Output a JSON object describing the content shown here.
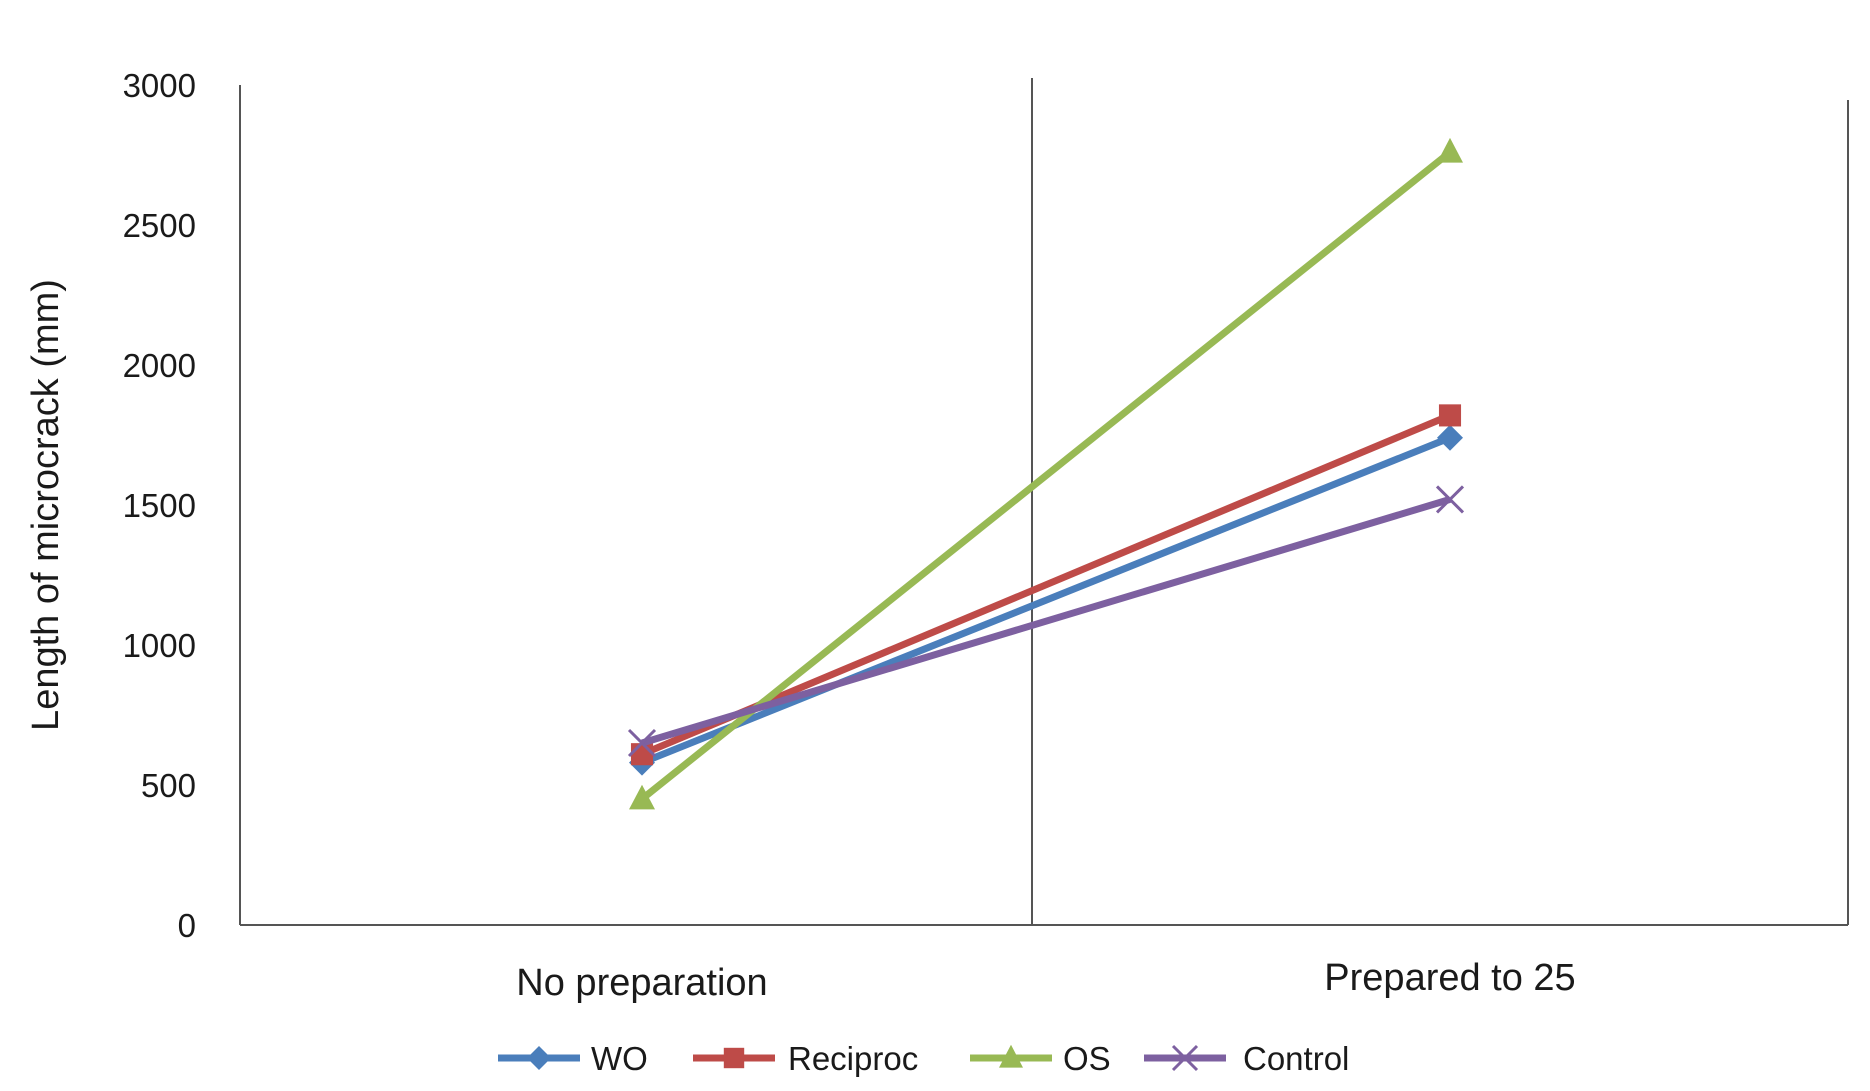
{
  "chart_data": {
    "type": "line",
    "ylabel": "Length of microcrack (mm)",
    "ylim": [
      0,
      3000
    ],
    "yticks": [
      "0",
      "500",
      "1000",
      "1500",
      "2000",
      "2500",
      "3000"
    ],
    "categories": [
      "No preparation",
      "Prepared to 25"
    ],
    "grid": false,
    "legend_position": "bottom",
    "series": [
      {
        "name": "WO",
        "values": [
          580,
          1740
        ],
        "color": "#4a7ebb",
        "marker": "diamond"
      },
      {
        "name": "Reciproc",
        "values": [
          610,
          1820
        ],
        "color": "#be4b48",
        "marker": "square"
      },
      {
        "name": "OS",
        "values": [
          450,
          2760
        ],
        "color": "#98b954",
        "marker": "triangle"
      },
      {
        "name": "Control",
        "values": [
          650,
          1520
        ],
        "color": "#7d60a0",
        "marker": "x"
      }
    ]
  }
}
